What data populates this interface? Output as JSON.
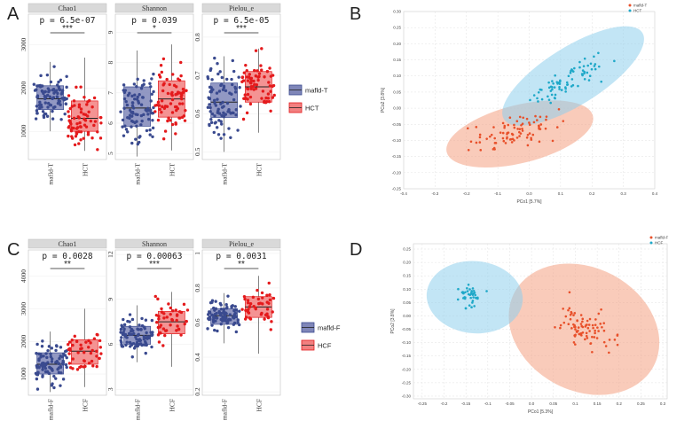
{
  "panel_labels": {
    "a": "A",
    "b": "B",
    "c": "C",
    "d": "D"
  },
  "colors": {
    "blue": "#3a4a8f",
    "blue_box": "#7f86b8",
    "red": "#e41a1c",
    "red_box": "#f28080",
    "strip_bg": "#d9d9d9",
    "pcoa_red": "#e8502a",
    "pcoa_blue": "#1ea8c8",
    "ell_red": "#f4a082",
    "ell_blue": "#8fd0ec"
  },
  "chart_data": [
    {
      "id": "A",
      "type": "boxplot",
      "groups": [
        "mafld-T",
        "HCT"
      ],
      "legend": [
        "mafld-T",
        "HCT"
      ],
      "facets": [
        {
          "name": "Chao1",
          "p": "p = 6.5e-07",
          "sig": "***",
          "ylim": [
            350,
            3700
          ],
          "yticks": [
            1000,
            2000,
            3000
          ],
          "boxes": [
            {
              "q1": 1500,
              "med": 1750,
              "q3": 2050,
              "lo": 1000,
              "hi": 2600,
              "n": 90,
              "seed": 11
            },
            {
              "q1": 1000,
              "med": 1300,
              "q3": 1700,
              "lo": 550,
              "hi": 2700,
              "n": 70,
              "seed": 12
            }
          ]
        },
        {
          "name": "Shannon",
          "p": "p = 0.039",
          "sig": "*",
          "ylim": [
            4.8,
            9.6
          ],
          "yticks": [
            5,
            6,
            7,
            8,
            9
          ],
          "boxes": [
            {
              "q1": 5.9,
              "med": 6.5,
              "q3": 7.2,
              "lo": 4.9,
              "hi": 8.4,
              "n": 90,
              "seed": 13
            },
            {
              "q1": 6.2,
              "med": 6.8,
              "q3": 7.4,
              "lo": 5.1,
              "hi": 8.6,
              "n": 70,
              "seed": 14
            }
          ]
        },
        {
          "name": "Pielou_e",
          "p": "p = 6.5e-05",
          "sig": "***",
          "ylim": [
            0.48,
            0.86
          ],
          "yticks": [
            0.5,
            0.6,
            0.7,
            0.8
          ],
          "boxes": [
            {
              "q1": 0.59,
              "med": 0.63,
              "q3": 0.68,
              "lo": 0.5,
              "hi": 0.75,
              "n": 90,
              "seed": 15
            },
            {
              "q1": 0.63,
              "med": 0.67,
              "q3": 0.71,
              "lo": 0.55,
              "hi": 0.77,
              "n": 70,
              "seed": 16
            }
          ]
        }
      ]
    },
    {
      "id": "C",
      "type": "boxplot",
      "groups": [
        "mafld-F",
        "HCF"
      ],
      "legend": [
        "mafld-F",
        "HCF"
      ],
      "facets": [
        {
          "name": "Chao1",
          "p": "p = 0.0028",
          "sig": "**",
          "ylim": [
            350,
            4800
          ],
          "yticks": [
            1000,
            2000,
            3000,
            4000
          ],
          "boxes": [
            {
              "q1": 1000,
              "med": 1300,
              "q3": 1650,
              "lo": 450,
              "hi": 2300,
              "n": 90,
              "seed": 21
            },
            {
              "q1": 1300,
              "med": 1700,
              "q3": 2050,
              "lo": 600,
              "hi": 3000,
              "n": 45,
              "seed": 22
            }
          ]
        },
        {
          "name": "Shannon",
          "p": "p = 0.00063",
          "sig": "***",
          "ylim": [
            2.6,
            12.3
          ],
          "yticks": [
            3,
            6,
            9,
            12
          ],
          "boxes": [
            {
              "q1": 6.0,
              "med": 6.6,
              "q3": 7.2,
              "lo": 4.8,
              "hi": 8.6,
              "n": 90,
              "seed": 23
            },
            {
              "q1": 6.7,
              "med": 7.5,
              "q3": 8.2,
              "lo": 4.5,
              "hi": 9.5,
              "n": 45,
              "seed": 24
            }
          ]
        },
        {
          "name": "Pielou_e",
          "p": "p = 0.0031",
          "sig": "**",
          "ylim": [
            0.18,
            1.02
          ],
          "yticks": [
            0.2,
            0.4,
            0.6,
            0.8,
            1.0
          ],
          "boxes": [
            {
              "q1": 0.59,
              "med": 0.64,
              "q3": 0.68,
              "lo": 0.48,
              "hi": 0.77,
              "n": 90,
              "seed": 25
            },
            {
              "q1": 0.63,
              "med": 0.69,
              "q3": 0.75,
              "lo": 0.42,
              "hi": 0.87,
              "n": 45,
              "seed": 26
            }
          ]
        }
      ]
    },
    {
      "id": "B",
      "type": "scatter",
      "xlabel": "PCo1 [5.7%]",
      "ylabel": "PCo2 [3.8%]",
      "xlim": [
        -0.4,
        0.4
      ],
      "ylim": [
        -0.25,
        0.3
      ],
      "xticks": [
        -0.4,
        -0.3,
        -0.2,
        -0.1,
        0.0,
        0.1,
        0.2,
        0.3,
        0.4
      ],
      "yticks": [
        -0.25,
        -0.2,
        -0.15,
        -0.1,
        -0.05,
        0.0,
        0.05,
        0.1,
        0.15,
        0.2,
        0.25,
        0.3
      ],
      "legend": [
        "mafld-T",
        "HCT"
      ],
      "series": [
        {
          "name": "mafld-T",
          "ellipse": {
            "cx": -0.03,
            "cy": -0.08,
            "rx": 0.24,
            "ry": 0.09,
            "rot": -14
          },
          "center": [
            -0.04,
            -0.07
          ],
          "spread": [
            0.18,
            0.055
          ],
          "n": 85,
          "seed": 31
        },
        {
          "name": "HCT",
          "ellipse": {
            "cx": 0.14,
            "cy": 0.1,
            "rx": 0.26,
            "ry": 0.09,
            "rot": -32
          },
          "center": [
            0.13,
            0.09
          ],
          "spread": [
            0.17,
            0.05
          ],
          "n": 75,
          "seed": 32
        }
      ]
    },
    {
      "id": "D",
      "type": "scatter",
      "xlabel": "PCo1 [5.3%]",
      "ylabel": "PCo2 [3.8%]",
      "xlim": [
        -0.27,
        0.31
      ],
      "ylim": [
        -0.31,
        0.27
      ],
      "xticks": [
        -0.25,
        -0.2,
        -0.15,
        -0.1,
        -0.05,
        0.0,
        0.05,
        0.1,
        0.15,
        0.2,
        0.25,
        0.3
      ],
      "yticks": [
        -0.3,
        -0.25,
        -0.2,
        -0.15,
        -0.1,
        -0.05,
        0.0,
        0.05,
        0.1,
        0.15,
        0.2,
        0.25
      ],
      "legend": [
        "mafld-F",
        "HCF"
      ],
      "series": [
        {
          "name": "mafld-F",
          "ellipse": {
            "cx": 0.12,
            "cy": -0.05,
            "rx": 0.18,
            "ry": 0.23,
            "rot": 28
          },
          "center": [
            0.12,
            -0.05
          ],
          "spread": [
            0.09,
            0.11
          ],
          "n": 85,
          "seed": 41
        },
        {
          "name": "HCF",
          "ellipse": {
            "cx": -0.13,
            "cy": 0.07,
            "rx": 0.11,
            "ry": 0.135,
            "rot": 5
          },
          "center": [
            -0.14,
            0.07
          ],
          "spread": [
            0.035,
            0.07
          ],
          "n": 40,
          "seed": 42
        }
      ]
    }
  ]
}
